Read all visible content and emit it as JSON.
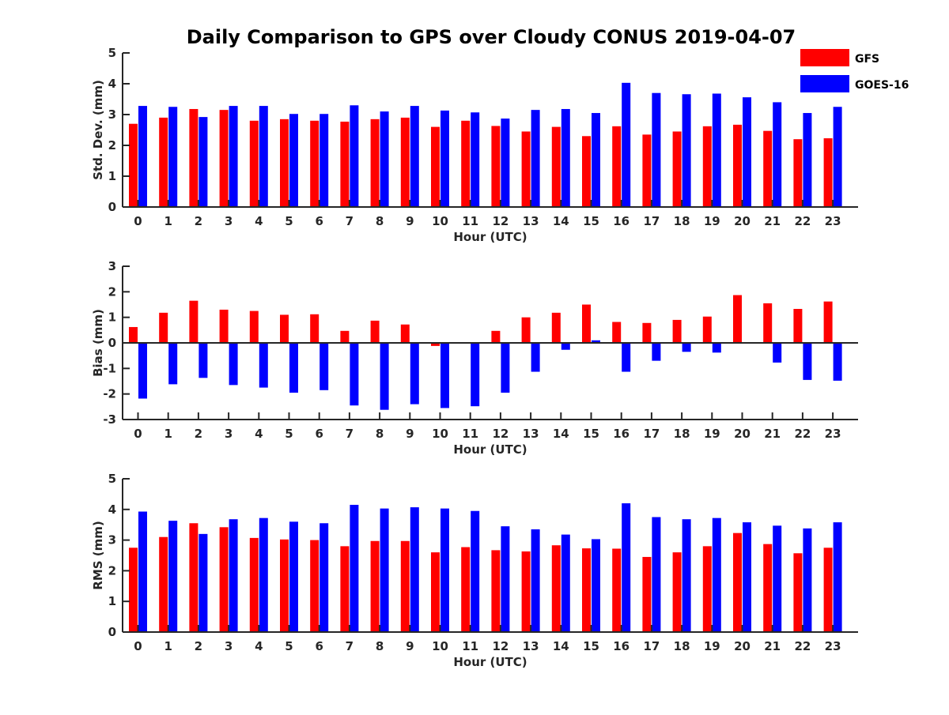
{
  "figure": {
    "title": "Daily Comparison to GPS over Cloudy CONUS 2019-04-07"
  },
  "legend": {
    "placement": "top-right",
    "items": [
      {
        "label": "GFS",
        "color": "#ff0000"
      },
      {
        "label": "GOES-16",
        "color": "#0000ff"
      }
    ]
  },
  "chart_data": [
    {
      "type": "bar",
      "xlabel": "Hour (UTC)",
      "ylabel": "Std. Dev. (mm)",
      "ylim": [
        0,
        5
      ],
      "yticks": [
        "0",
        "1",
        "2",
        "3",
        "4",
        "5"
      ],
      "categories": [
        "0",
        "1",
        "2",
        "3",
        "4",
        "5",
        "6",
        "7",
        "8",
        "9",
        "10",
        "11",
        "12",
        "13",
        "14",
        "15",
        "16",
        "17",
        "18",
        "19",
        "20",
        "21",
        "22",
        "23"
      ],
      "series": [
        {
          "name": "GFS",
          "color": "#ff0000",
          "values": [
            2.7,
            2.9,
            3.18,
            3.15,
            2.8,
            2.85,
            2.8,
            2.77,
            2.85,
            2.9,
            2.6,
            2.8,
            2.63,
            2.45,
            2.6,
            2.3,
            2.62,
            2.35,
            2.45,
            2.62,
            2.67,
            2.47,
            2.2,
            2.23
          ]
        },
        {
          "name": "GOES-16",
          "color": "#0000ff",
          "values": [
            3.28,
            3.25,
            2.92,
            3.28,
            3.28,
            3.02,
            3.02,
            3.3,
            3.1,
            3.28,
            3.13,
            3.07,
            2.87,
            3.15,
            3.18,
            3.05,
            4.03,
            3.7,
            3.66,
            3.68,
            3.56,
            3.4,
            3.05,
            3.25
          ]
        }
      ]
    },
    {
      "type": "bar",
      "xlabel": "Hour (UTC)",
      "ylabel": "Bias (mm)",
      "ylim": [
        -3,
        3
      ],
      "yticks": [
        "-3",
        "-2",
        "-1",
        "0",
        "1",
        "2",
        "3"
      ],
      "categories": [
        "0",
        "1",
        "2",
        "3",
        "4",
        "5",
        "6",
        "7",
        "8",
        "9",
        "10",
        "11",
        "12",
        "13",
        "14",
        "15",
        "16",
        "17",
        "18",
        "19",
        "20",
        "21",
        "22",
        "23"
      ],
      "series": [
        {
          "name": "GFS",
          "color": "#ff0000",
          "values": [
            0.62,
            1.18,
            1.65,
            1.3,
            1.25,
            1.1,
            1.12,
            0.47,
            0.87,
            0.72,
            -0.12,
            0.0,
            0.47,
            1.0,
            1.18,
            1.5,
            0.82,
            0.78,
            0.9,
            1.03,
            1.87,
            1.55,
            1.33,
            1.62
          ]
        },
        {
          "name": "GOES-16",
          "color": "#0000ff",
          "values": [
            -2.18,
            -1.62,
            -1.37,
            -1.65,
            -1.75,
            -1.95,
            -1.85,
            -2.45,
            -2.62,
            -2.4,
            -2.55,
            -2.48,
            -1.95,
            -1.13,
            -0.27,
            0.1,
            -1.13,
            -0.7,
            -0.35,
            -0.38,
            0.0,
            -0.77,
            -1.45,
            -1.48
          ]
        }
      ]
    },
    {
      "type": "bar",
      "xlabel": "Hour (UTC)",
      "ylabel": "RMS (mm)",
      "ylim": [
        0,
        5
      ],
      "yticks": [
        "0",
        "1",
        "2",
        "3",
        "4",
        "5"
      ],
      "categories": [
        "0",
        "1",
        "2",
        "3",
        "4",
        "5",
        "6",
        "7",
        "8",
        "9",
        "10",
        "11",
        "12",
        "13",
        "14",
        "15",
        "16",
        "17",
        "18",
        "19",
        "20",
        "21",
        "22",
        "23"
      ],
      "series": [
        {
          "name": "GFS",
          "color": "#ff0000",
          "values": [
            2.75,
            3.1,
            3.55,
            3.42,
            3.07,
            3.02,
            3.0,
            2.8,
            2.97,
            2.97,
            2.6,
            2.77,
            2.67,
            2.63,
            2.83,
            2.73,
            2.72,
            2.45,
            2.6,
            2.8,
            3.23,
            2.87,
            2.57,
            2.75
          ]
        },
        {
          "name": "GOES-16",
          "color": "#0000ff",
          "values": [
            3.93,
            3.63,
            3.2,
            3.68,
            3.72,
            3.6,
            3.55,
            4.15,
            4.03,
            4.07,
            4.03,
            3.95,
            3.45,
            3.35,
            3.18,
            3.03,
            4.2,
            3.75,
            3.68,
            3.72,
            3.58,
            3.47,
            3.38,
            3.58
          ]
        }
      ]
    }
  ]
}
